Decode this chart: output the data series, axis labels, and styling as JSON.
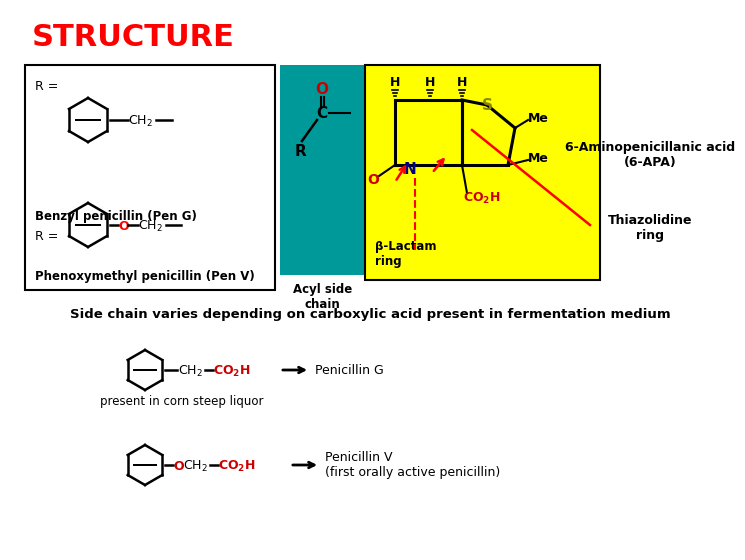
{
  "title": "STRUCTURE",
  "title_color": "#ff0000",
  "bg_color": "#ffffff",
  "teal_color": "#009999",
  "yellow_color": "#ffff00",
  "text_color": "#000000",
  "red_color": "#ff0000",
  "pen_g_label": "Benzyl penicillin (Pen G)",
  "pen_v_label": "Phenoxymethyl penicillin (Pen V)",
  "apa_label": "6-Aminopenicillanic acid\n(6-APA)",
  "acyl_label": "Acyl side\nchain",
  "beta_lactam": "β-Lactam\nring",
  "thiazolidine": "Thiazolidine\nring",
  "side_chain_text": "Side chain varies depending on carboxylic acid present in fermentation medium",
  "pen_g_arrow": "Penicillin G",
  "pen_v_arrow": "Penicillin V\n(first orally active penicillin)",
  "present_label": "present in corn steep liquor"
}
